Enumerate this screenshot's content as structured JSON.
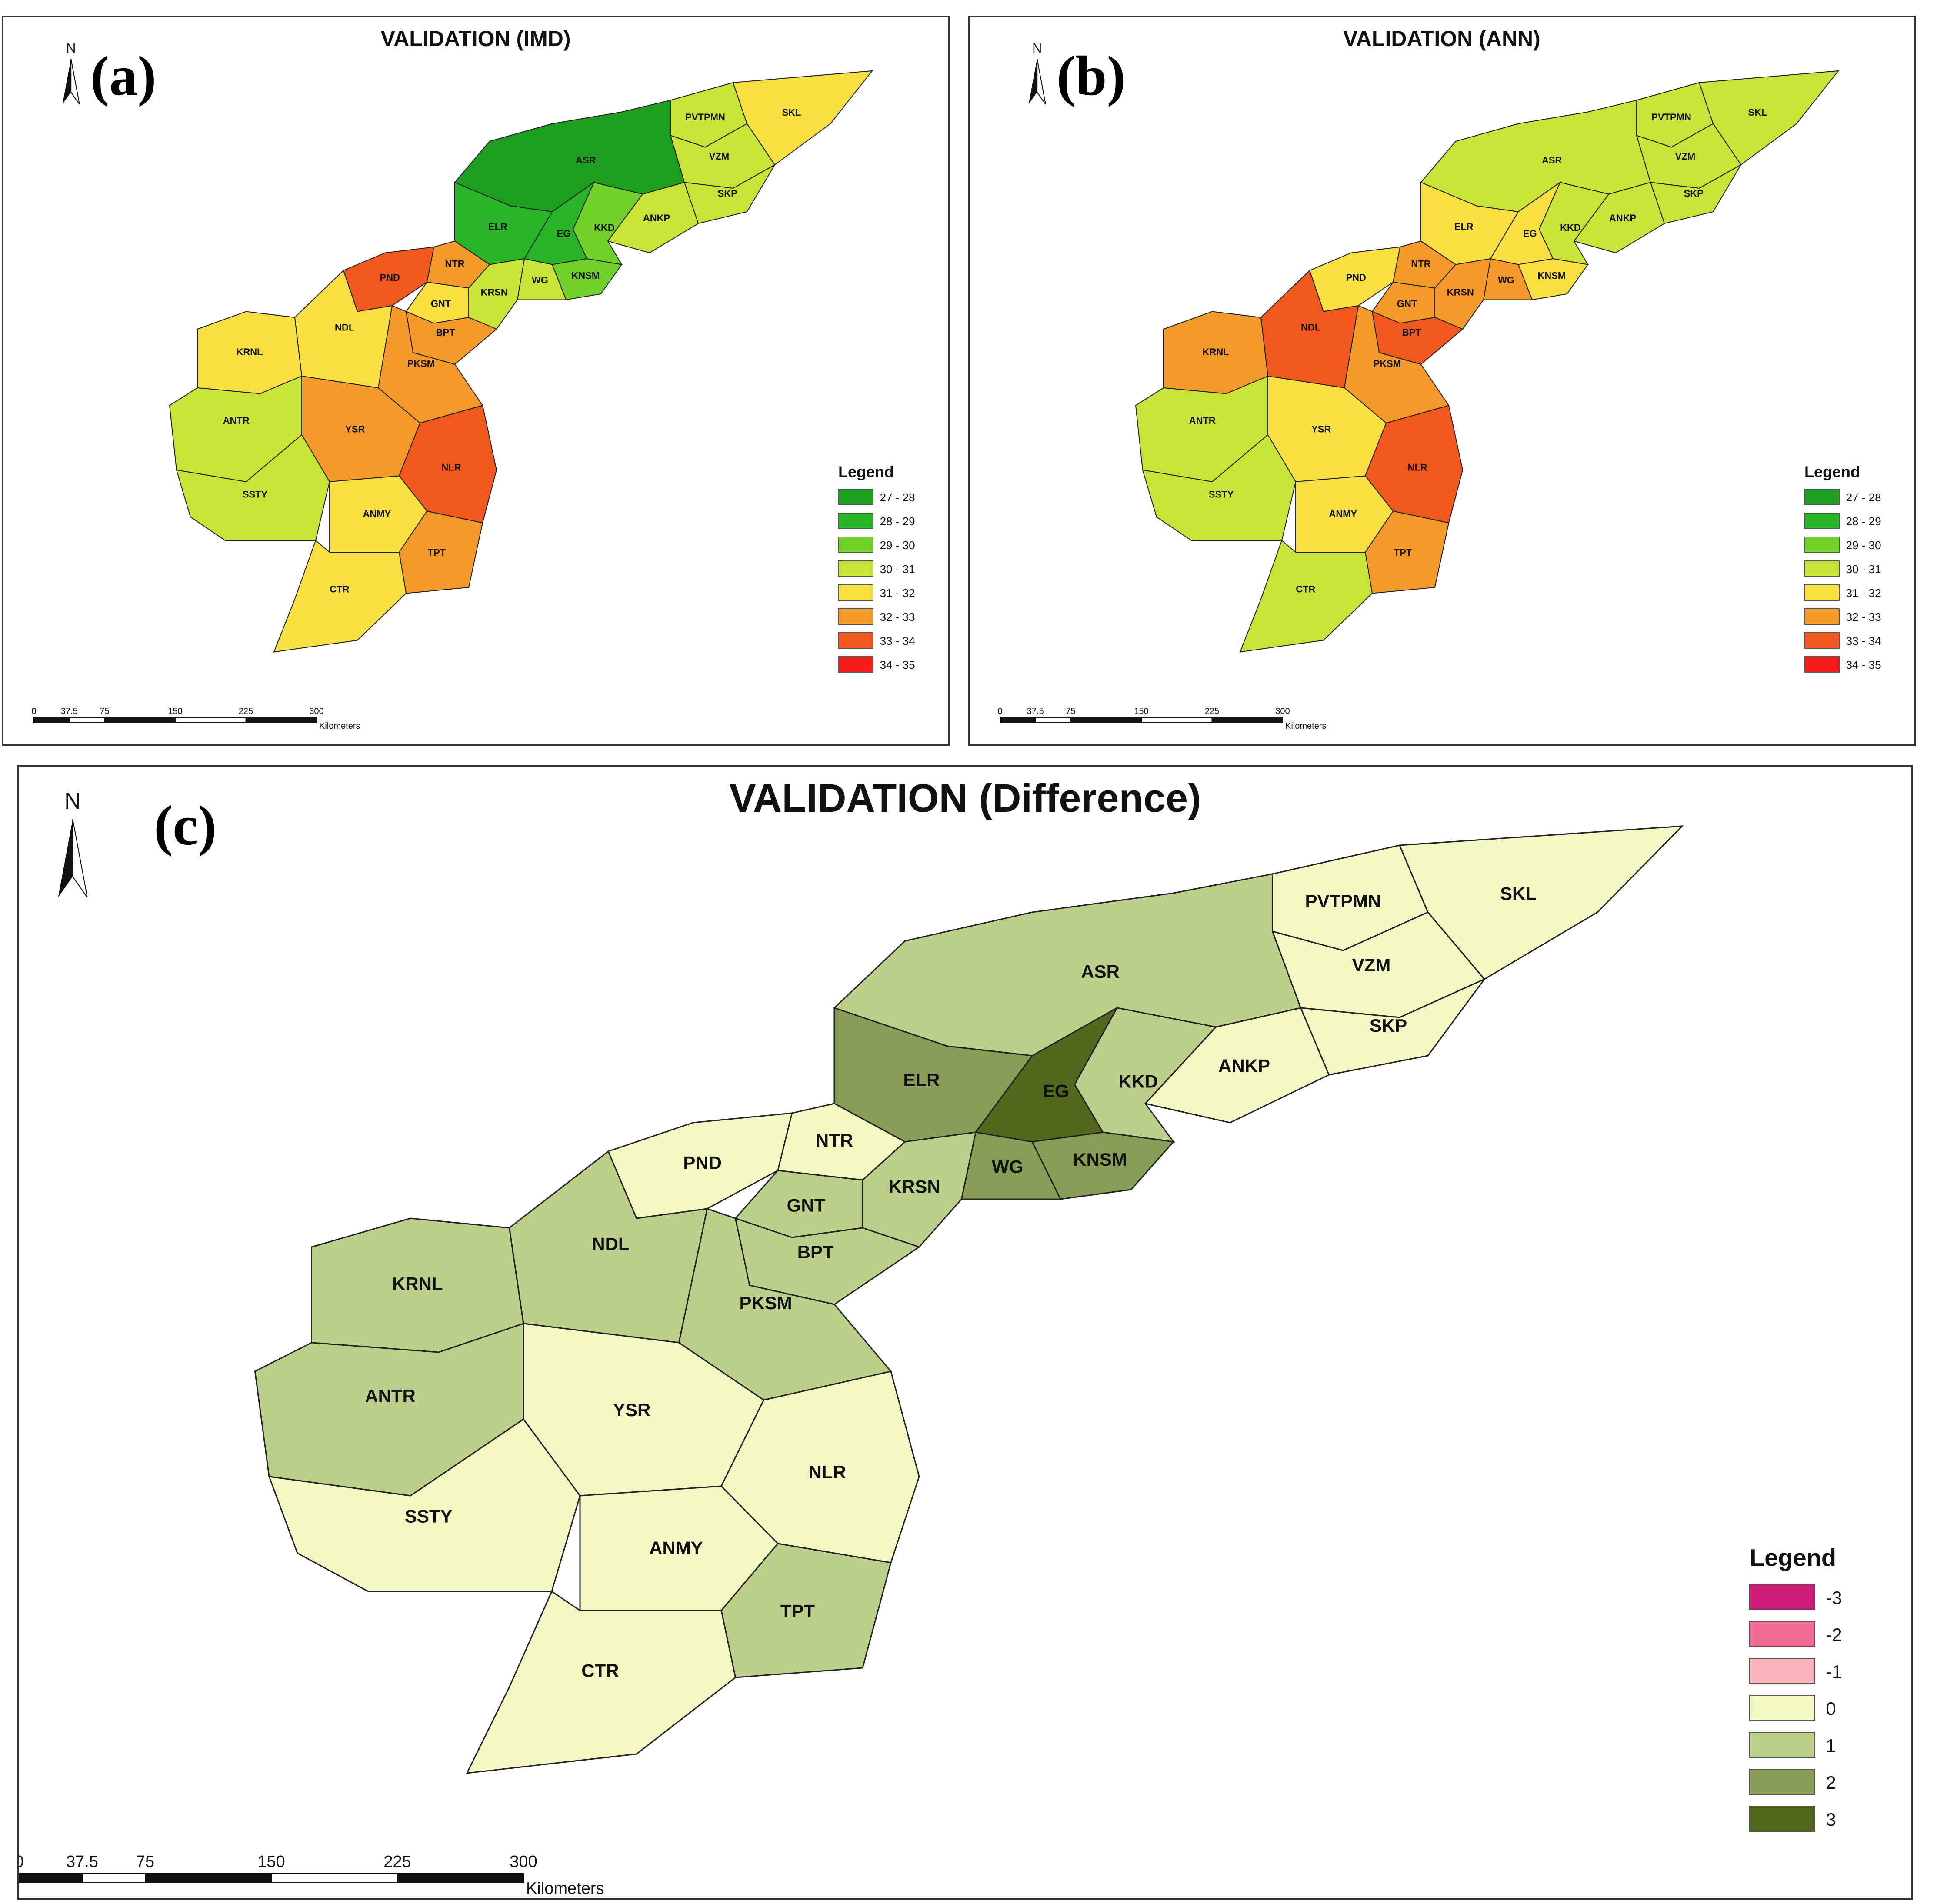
{
  "panels": [
    {
      "id": "a",
      "label": "(a)",
      "title": "VALIDATION (IMD)",
      "north": "N",
      "legend_title": "Legend",
      "legend": [
        {
          "label": "27 - 28",
          "color": "#1e9e1e"
        },
        {
          "label": "28 - 29",
          "color": "#28b428"
        },
        {
          "label": "29 - 30",
          "color": "#6fd12a"
        },
        {
          "label": "30 - 31",
          "color": "#c9e436"
        },
        {
          "label": "31 - 32",
          "color": "#f8e043"
        },
        {
          "label": "32 - 33",
          "color": "#f39a2a"
        },
        {
          "label": "33 - 34",
          "color": "#f2571e"
        },
        {
          "label": "34 - 35",
          "color": "#f41c1c"
        }
      ],
      "scale": {
        "ticks": [
          "0",
          "37.5",
          "75",
          "150",
          "225",
          "300"
        ],
        "unit": "Kilometers"
      },
      "districts": [
        {
          "code": "PVTPMN",
          "color": "#c9e436"
        },
        {
          "code": "SKL",
          "color": "#f8e043"
        },
        {
          "code": "VZM",
          "color": "#c9e436"
        },
        {
          "code": "ASR",
          "color": "#1e9e1e"
        },
        {
          "code": "SKP",
          "color": "#c9e436"
        },
        {
          "code": "ANKP",
          "color": "#c9e436"
        },
        {
          "code": "KKD",
          "color": "#6fd12a"
        },
        {
          "code": "ELR",
          "color": "#28b428"
        },
        {
          "code": "EG",
          "color": "#28b428"
        },
        {
          "code": "NTR",
          "color": "#f39a2a"
        },
        {
          "code": "KNSM",
          "color": "#6fd12a"
        },
        {
          "code": "WG",
          "color": "#c9e436"
        },
        {
          "code": "PND",
          "color": "#f2571e"
        },
        {
          "code": "GNT",
          "color": "#f8e043"
        },
        {
          "code": "KRSN",
          "color": "#c9e436"
        },
        {
          "code": "BPT",
          "color": "#f39a2a"
        },
        {
          "code": "KRNL",
          "color": "#f8e043"
        },
        {
          "code": "NDL",
          "color": "#f8e043"
        },
        {
          "code": "PKSM",
          "color": "#f39a2a"
        },
        {
          "code": "ANTR",
          "color": "#c9e436"
        },
        {
          "code": "YSR",
          "color": "#f39a2a"
        },
        {
          "code": "NLR",
          "color": "#f2571e"
        },
        {
          "code": "SSTY",
          "color": "#c9e436"
        },
        {
          "code": "ANMY",
          "color": "#f8e043"
        },
        {
          "code": "TPT",
          "color": "#f39a2a"
        },
        {
          "code": "CTR",
          "color": "#f8e043"
        }
      ]
    },
    {
      "id": "b",
      "label": "(b)",
      "title": "VALIDATION (ANN)",
      "north": "N",
      "legend_title": "Legend",
      "legend": [
        {
          "label": "27 - 28",
          "color": "#1e9e1e"
        },
        {
          "label": "28 - 29",
          "color": "#28b428"
        },
        {
          "label": "29 - 30",
          "color": "#6fd12a"
        },
        {
          "label": "30 - 31",
          "color": "#c9e436"
        },
        {
          "label": "31 - 32",
          "color": "#f8e043"
        },
        {
          "label": "32 - 33",
          "color": "#f39a2a"
        },
        {
          "label": "33 - 34",
          "color": "#f2571e"
        },
        {
          "label": "34 - 35",
          "color": "#f41c1c"
        }
      ],
      "scale": {
        "ticks": [
          "0",
          "37.5",
          "75",
          "150",
          "225",
          "300"
        ],
        "unit": "Kilometers"
      },
      "districts": [
        {
          "code": "PVTPMN",
          "color": "#c9e436"
        },
        {
          "code": "SKL",
          "color": "#c9e436"
        },
        {
          "code": "VZM",
          "color": "#c9e436"
        },
        {
          "code": "ASR",
          "color": "#c9e436"
        },
        {
          "code": "SKP",
          "color": "#c9e436"
        },
        {
          "code": "ANKP",
          "color": "#c9e436"
        },
        {
          "code": "KKD",
          "color": "#c9e436"
        },
        {
          "code": "ELR",
          "color": "#f8e043"
        },
        {
          "code": "EG",
          "color": "#f8e043"
        },
        {
          "code": "NTR",
          "color": "#f39a2a"
        },
        {
          "code": "KNSM",
          "color": "#f8e043"
        },
        {
          "code": "WG",
          "color": "#f39a2a"
        },
        {
          "code": "PND",
          "color": "#f8e043"
        },
        {
          "code": "GNT",
          "color": "#f39a2a"
        },
        {
          "code": "KRSN",
          "color": "#f39a2a"
        },
        {
          "code": "BPT",
          "color": "#f2571e"
        },
        {
          "code": "KRNL",
          "color": "#f39a2a"
        },
        {
          "code": "NDL",
          "color": "#f2571e"
        },
        {
          "code": "PKSM",
          "color": "#f39a2a"
        },
        {
          "code": "ANTR",
          "color": "#c9e436"
        },
        {
          "code": "YSR",
          "color": "#f8e043"
        },
        {
          "code": "NLR",
          "color": "#f2571e"
        },
        {
          "code": "SSTY",
          "color": "#c9e436"
        },
        {
          "code": "ANMY",
          "color": "#f8e043"
        },
        {
          "code": "TPT",
          "color": "#f39a2a"
        },
        {
          "code": "CTR",
          "color": "#c9e436"
        }
      ]
    },
    {
      "id": "c",
      "label": "(c)",
      "title": "VALIDATION (Difference)",
      "north": "N",
      "legend_title": "Legend",
      "legend": [
        {
          "label": "-3",
          "color": "#d11d7a"
        },
        {
          "label": "-2",
          "color": "#f06b92"
        },
        {
          "label": "-1",
          "color": "#f7b3ba"
        },
        {
          "label": "0",
          "color": "#f3f8c4"
        },
        {
          "label": "1",
          "color": "#bdd08b"
        },
        {
          "label": "2",
          "color": "#889d56"
        },
        {
          "label": "3",
          "color": "#53681e"
        }
      ],
      "scale": {
        "ticks": [
          "0",
          "37.5",
          "75",
          "150",
          "225",
          "300"
        ],
        "unit": "Kilometers"
      },
      "districts": [
        {
          "code": "PVTPMN",
          "color": "#f3f8c4"
        },
        {
          "code": "SKL",
          "color": "#f3f8c4"
        },
        {
          "code": "VZM",
          "color": "#f3f8c4"
        },
        {
          "code": "ASR",
          "color": "#bdd08b"
        },
        {
          "code": "SKP",
          "color": "#f3f8c4"
        },
        {
          "code": "ANKP",
          "color": "#f3f8c4"
        },
        {
          "code": "KKD",
          "color": "#bdd08b"
        },
        {
          "code": "ELR",
          "color": "#889d56"
        },
        {
          "code": "EG",
          "color": "#53681e"
        },
        {
          "code": "NTR",
          "color": "#f3f8c4"
        },
        {
          "code": "KNSM",
          "color": "#889d56"
        },
        {
          "code": "WG",
          "color": "#889d56"
        },
        {
          "code": "PND",
          "color": "#f3f8c4"
        },
        {
          "code": "GNT",
          "color": "#bdd08b"
        },
        {
          "code": "KRSN",
          "color": "#bdd08b"
        },
        {
          "code": "BPT",
          "color": "#bdd08b"
        },
        {
          "code": "KRNL",
          "color": "#bdd08b"
        },
        {
          "code": "NDL",
          "color": "#bdd08b"
        },
        {
          "code": "PKSM",
          "color": "#bdd08b"
        },
        {
          "code": "ANTR",
          "color": "#bdd08b"
        },
        {
          "code": "YSR",
          "color": "#f3f8c4"
        },
        {
          "code": "NLR",
          "color": "#f3f8c4"
        },
        {
          "code": "SSTY",
          "color": "#f3f8c4"
        },
        {
          "code": "ANMY",
          "color": "#f3f8c4"
        },
        {
          "code": "TPT",
          "color": "#bdd08b"
        },
        {
          "code": "CTR",
          "color": "#f3f8c4"
        }
      ]
    }
  ]
}
